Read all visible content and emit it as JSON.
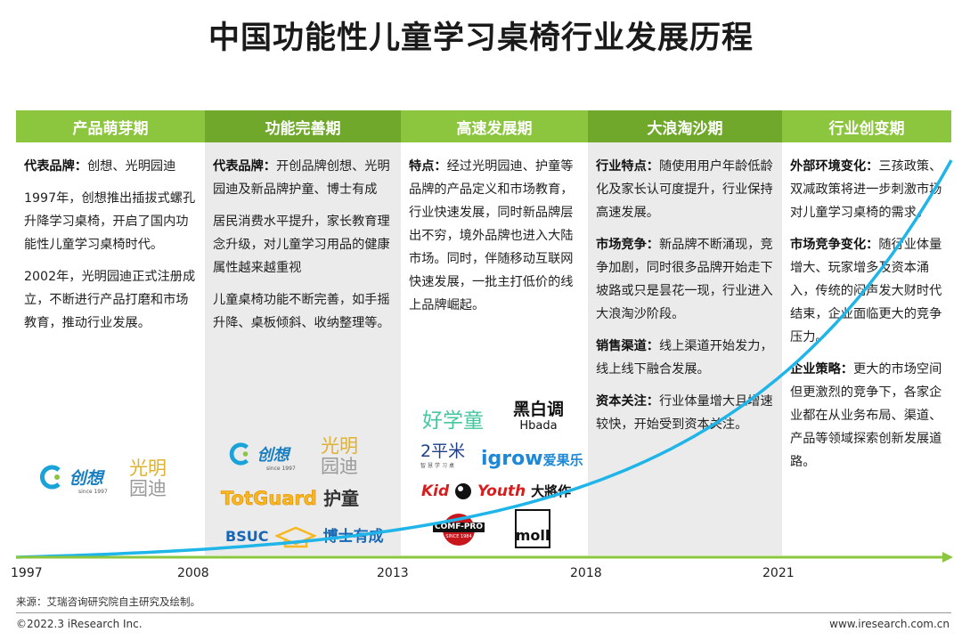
{
  "title": "中国功能性儿童学习桌椅行业发展历程",
  "stages": [
    {
      "header": "产品萌芽期",
      "paras": [
        {
          "label": "代表品牌：",
          "text": "创想、光明园迪"
        },
        {
          "label": "",
          "text": "1997年，创想推出插拔式螺孔升降学习桌椅，开启了国内功能性儿童学习桌椅时代。"
        },
        {
          "label": "",
          "text": "2002年，光明园迪正式注册成立，不断进行产品打磨和市场教育，推动行业发展。"
        }
      ]
    },
    {
      "header": "功能完善期",
      "paras": [
        {
          "label": "代表品牌：",
          "text": "开创品牌创想、光明园迪及新品牌护童、博士有成"
        },
        {
          "label": "",
          "text": "居民消费水平提升，家长教育理念升级，对儿童学习用品的健康属性越来越重视"
        },
        {
          "label": "",
          "text": "儿童桌椅功能不断完善，如手摇升降、桌板倾斜、收纳整理等。"
        }
      ]
    },
    {
      "header": "高速发展期",
      "paras": [
        {
          "label": "特点：",
          "text": "经过光明园迪、护童等品牌的产品定义和市场教育，行业快速发展，同时新品牌层出不穷，境外品牌也进入大陆市场。同时，伴随移动互联网快速发展，一批主打低价的线上品牌崛起。"
        }
      ]
    },
    {
      "header": "大浪淘沙期",
      "paras": [
        {
          "label": "行业特点：",
          "text": "随使用用户年龄低龄化及家长认可度提升，行业保持高速发展。"
        },
        {
          "label": "市场竞争：",
          "text": "新品牌不断涌现，竞争加剧，同时很多品牌开始走下坡路或只是昙花一现，行业进入大浪淘沙阶段。"
        },
        {
          "label": "销售渠道：",
          "text": "线上渠道开始发力，线上线下融合发展。"
        },
        {
          "label": "资本关注：",
          "text": "行业体量增大且增速较快，开始受到资本关注。"
        }
      ]
    },
    {
      "header": "行业创变期",
      "paras": [
        {
          "label": "外部环境变化：",
          "text": "三孩政策、双减政策将进一步刺激市场对儿童学习桌椅的需求。"
        },
        {
          "label": "市场竞争变化：",
          "text": "随行业体量增大、玩家增多及资本涌入，传统的闷声发大财时代结束，企业面临更大的竞争压力。"
        },
        {
          "label": "企业策略：",
          "text": "更大的市场空间但更激烈的竞争下，各家企业都在从业务布局、渠道、产品等领域探索创新发展道路。"
        }
      ]
    }
  ],
  "logos": {
    "chuangxiang": "创想",
    "chuangxiang_since": "since 1997",
    "guangming": "光明",
    "yuandi": "园迪",
    "totguard": "TotGuard",
    "hutong": "护童",
    "bsuc": "BSUC",
    "boshi": "博士有成",
    "haoxuetong": "好学童",
    "heibaitiao": "黑白调",
    "hbada": "Hbada",
    "erpingmi": "2平米",
    "erpingmi_sub": "智慧学习桌",
    "igrow": "igrow",
    "aiguole": "爱果乐",
    "kidyouth": "Kid",
    "kidyouth2": "Youth",
    "dajiangzuo": "大將作",
    "compro": "COMF-PRO",
    "compro_since": "SINCE 1984",
    "moll": "moll"
  },
  "timeline": {
    "years": [
      "1997",
      "2008",
      "2013",
      "2018",
      "2021"
    ]
  },
  "colors": {
    "green": "#8cc63f",
    "dark_green": "#6fa82b",
    "curve": "#1fb5e8",
    "axis": "#8cc63f"
  },
  "source": "来源：艾瑞咨询研究院自主研究及绘制。",
  "copyright": "©2022.3 iResearch Inc.",
  "website": "www.iresearch.com.cn"
}
